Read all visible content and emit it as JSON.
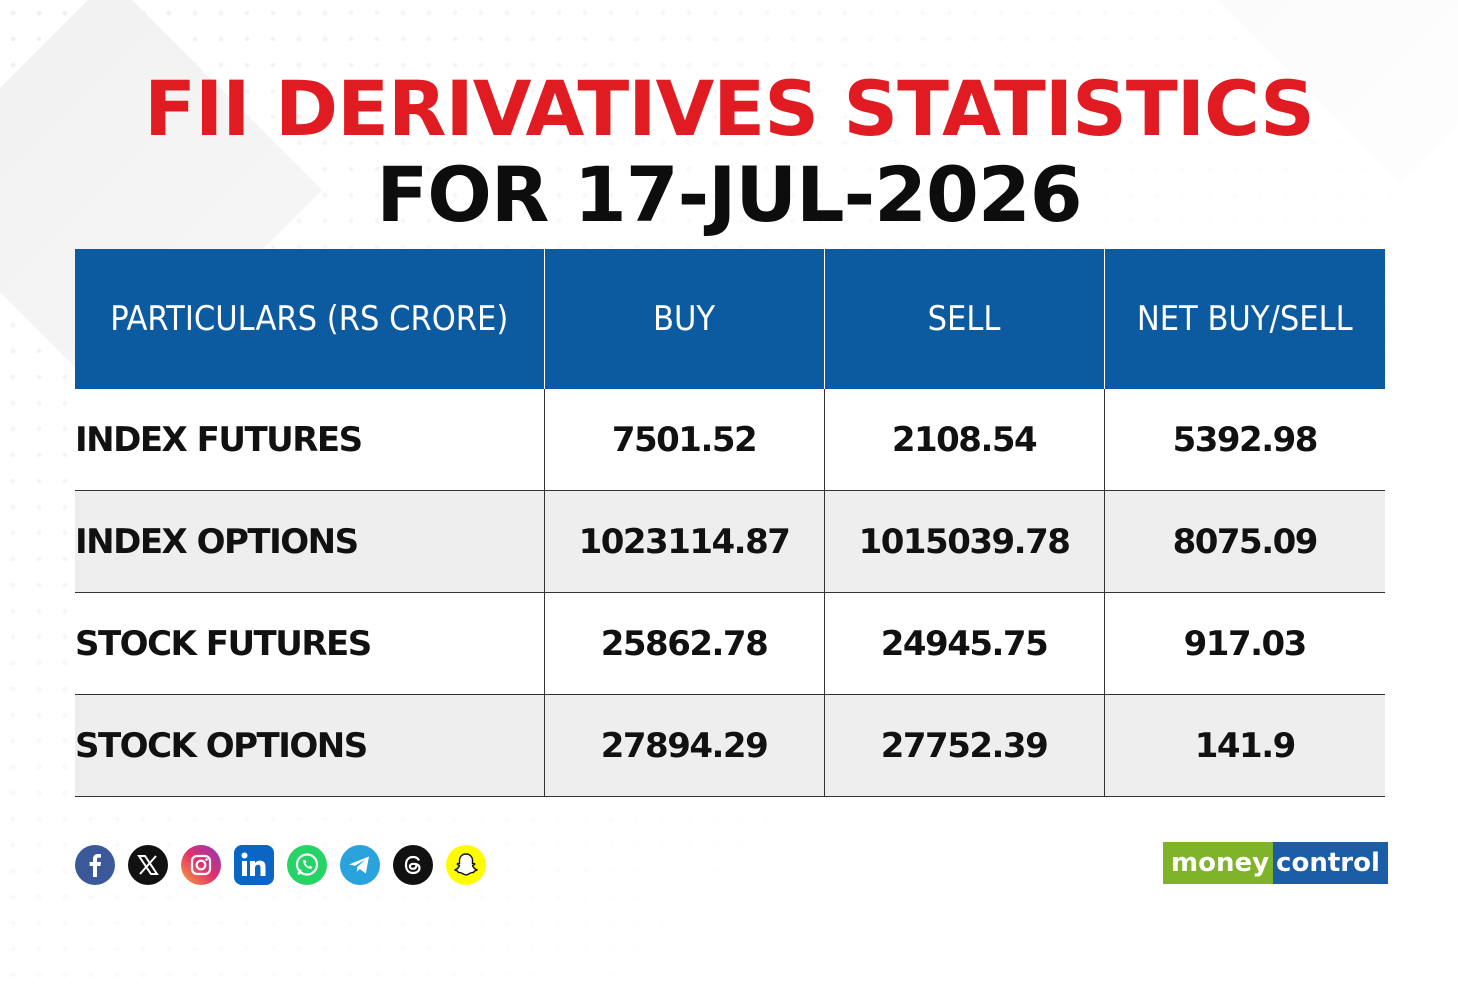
{
  "header": {
    "title_line1": "FII DERIVATIVES STATISTICS",
    "title_line2": "FOR 17-JUL-2026"
  },
  "table": {
    "columns": [
      "PARTICULARS (RS CRORE)",
      "BUY",
      "SELL",
      "NET BUY/SELL"
    ],
    "rows": [
      [
        "INDEX FUTURES",
        "7501.52",
        "2108.54",
        "5392.98"
      ],
      [
        "INDEX OPTIONS",
        "1023114.87",
        "1015039.78",
        "8075.09"
      ],
      [
        "STOCK FUTURES",
        "25862.78",
        "24945.75",
        "917.03"
      ],
      [
        "STOCK OPTIONS",
        "27894.29",
        "27752.39",
        "141.9"
      ]
    ]
  },
  "colors": {
    "title_red": "#e11b22",
    "header_blue": "#0c5a9f",
    "logo_green": "#7fb32a",
    "logo_blue": "#1b5ea6"
  },
  "socials": [
    "facebook-icon",
    "x-icon",
    "instagram-icon",
    "linkedin-icon",
    "whatsapp-icon",
    "telegram-icon",
    "threads-icon",
    "snapchat-icon"
  ],
  "logo": {
    "part1": "money",
    "part2": "control"
  }
}
